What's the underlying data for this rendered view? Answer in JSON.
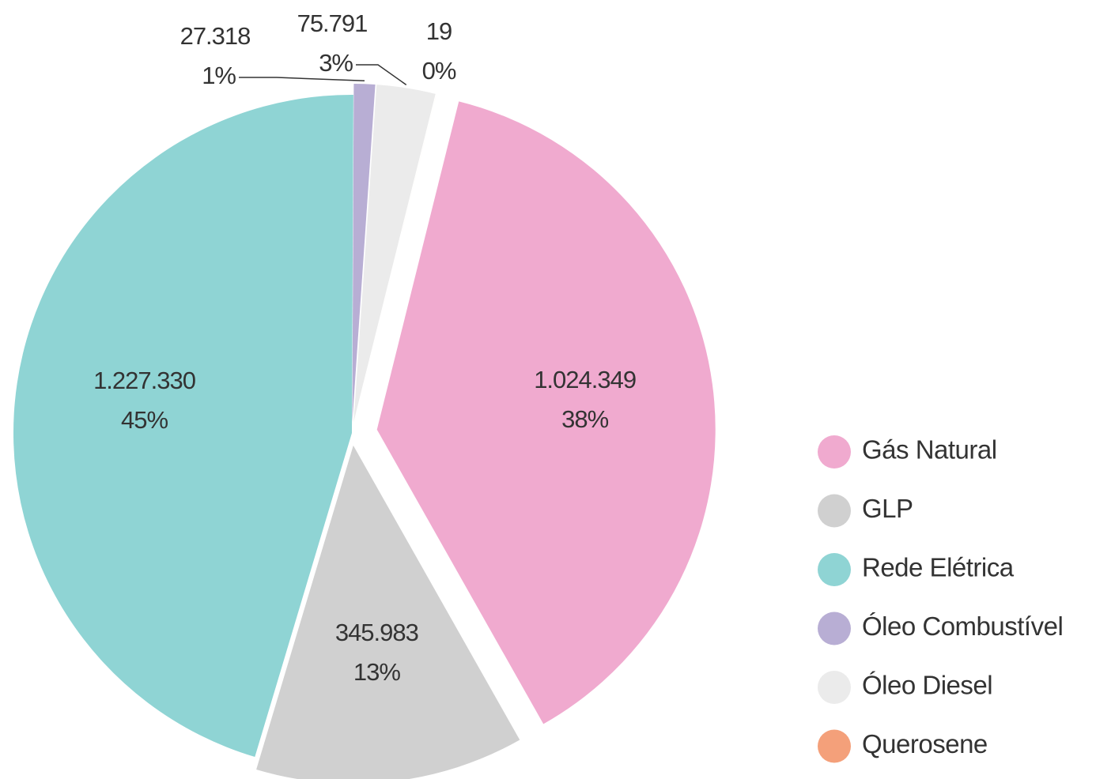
{
  "chart_data": {
    "type": "pie",
    "categories": [
      "Gás Natural",
      "GLP",
      "Rede Elétrica",
      "Óleo Combustível",
      "Óleo Diesel",
      "Querosene"
    ],
    "values": [
      1024349,
      345983,
      1227330,
      27318,
      75791,
      19
    ],
    "value_labels": [
      "1.024.349",
      "345.983",
      "1.227.330",
      "27.318",
      "75.791",
      "19"
    ],
    "percent_labels": [
      "38%",
      "13%",
      "45%",
      "1%",
      "3%",
      "0%"
    ],
    "colors": [
      "#f0aacf",
      "#d0d0d0",
      "#8fd4d4",
      "#b8aed4",
      "#ebebeb",
      "#f4a07a"
    ],
    "legend": "right"
  }
}
